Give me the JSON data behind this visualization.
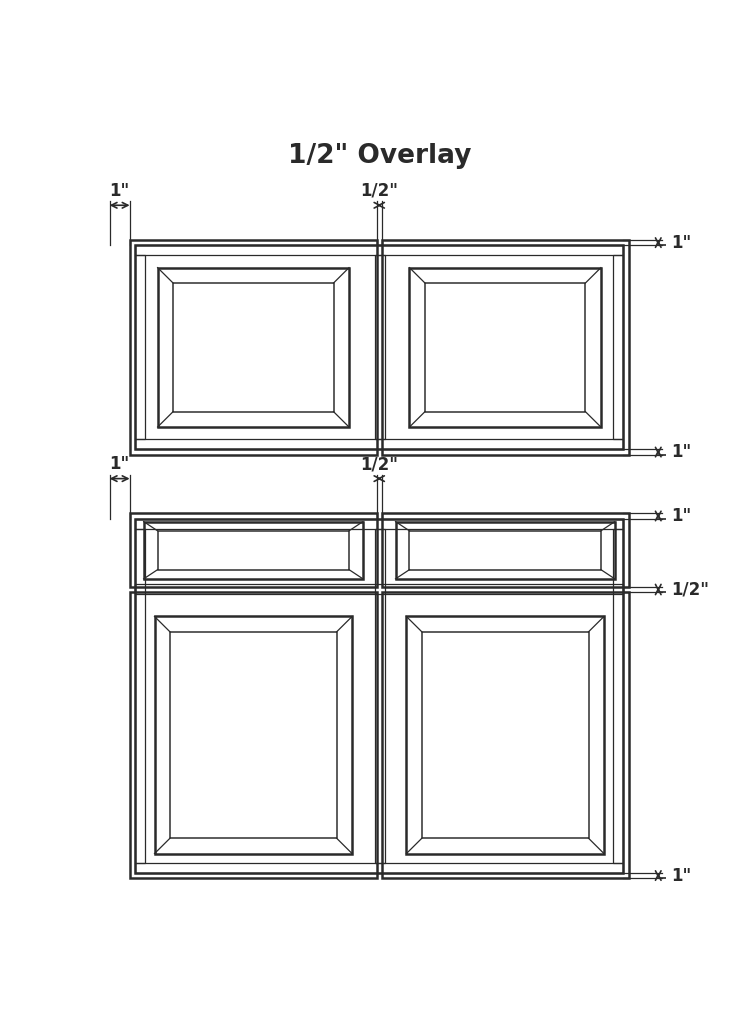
{
  "title": "1/2\" Overlay",
  "title_fontsize": 19,
  "bg_color": "#ffffff",
  "line_color": "#2a2a2a",
  "lw_main": 1.8,
  "lw_thin": 0.9,
  "lw_ann": 1.2,
  "fig_width": 7.4,
  "fig_height": 10.24,
  "ann_fs": 12,
  "dpi": 100
}
